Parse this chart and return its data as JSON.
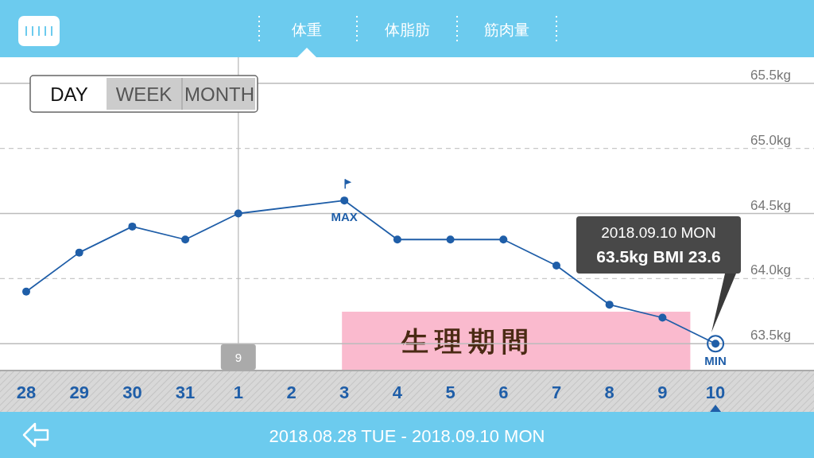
{
  "chart_data": {
    "type": "line",
    "title": "体重",
    "categories": [
      "28",
      "29",
      "30",
      "31",
      "1",
      "2",
      "3",
      "4",
      "5",
      "6",
      "7",
      "8",
      "9",
      "10"
    ],
    "series": [
      {
        "color": "#1f5ea8",
        "values": [
          63.9,
          64.2,
          64.4,
          64.3,
          64.5,
          null,
          64.6,
          64.3,
          64.3,
          64.3,
          64.1,
          63.8,
          63.7,
          63.5
        ]
      }
    ],
    "ylim": [
      63.3,
      65.7
    ],
    "yticks": [
      {
        "value": 63.5,
        "label": "63.5kg"
      },
      {
        "value": 64.0,
        "label": "64.0kg"
      },
      {
        "value": 64.5,
        "label": "64.5kg"
      },
      {
        "value": 65.0,
        "label": "65.0kg"
      },
      {
        "value": 65.5,
        "label": "65.5kg"
      }
    ],
    "grid": "y",
    "marker": "circle",
    "line_style": "solid",
    "ref_lines": [
      {
        "axis": "x",
        "value": "1",
        "label": "9",
        "color": "#bbbbbb"
      }
    ],
    "bands": [
      {
        "axis": "x",
        "from": "3",
        "to": "9",
        "label": "生理期間",
        "color": "#f9b3c9"
      }
    ],
    "annotations": [
      "体脂肪",
      "筋肉量",
      "DAY",
      "WEEK",
      "MONTH",
      "2018.08.28 TUE - 2018.09.10 MON",
      "2018.09.10 MON\n63.5kg  BMI 23.6",
      {
        "text": "MAX",
        "x": "3",
        "y": 64.6
      },
      {
        "text": "MIN",
        "x": "10",
        "y": 63.5
      }
    ]
  }
}
